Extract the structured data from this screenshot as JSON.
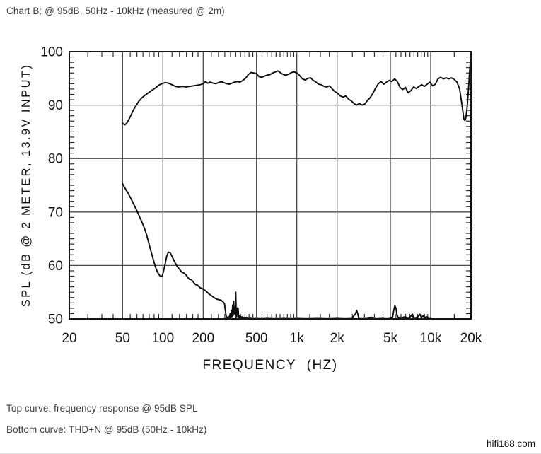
{
  "header": {
    "caption": "Chart B: @ 95dB, 50Hz - 10kHz (measured @ 2m)"
  },
  "footer": {
    "line1": "Top curve: frequency response @ 95dB SPL",
    "line2": "Bottom curve: THD+N @ 95dB (50Hz - 10kHz)",
    "watermark": "hifi168.com"
  },
  "colors": {
    "curve": "#0d0d0d",
    "grid": "#4a4a4a",
    "frame": "#151515",
    "tick": "#2a2a2a"
  },
  "chart_data": {
    "type": "line",
    "title": "Chart B: @ 95dB, 50Hz - 10kHz (measured @ 2m)",
    "xlabel": "FREQUENCY (HZ)",
    "ylabel": "SPL (dB @ 2 METER, 13.9V INPUT)",
    "x_scale": "log",
    "xlim": [
      20,
      20000
    ],
    "ylim": [
      50,
      100
    ],
    "grid": true,
    "x_gridline_freqs": [
      50,
      100,
      200,
      500,
      1000,
      2000,
      5000,
      10000
    ],
    "y_gridline_values": [
      60,
      70,
      80,
      90
    ],
    "x_ticks": [
      {
        "f": 20,
        "label": "20"
      },
      {
        "f": 50,
        "label": "50"
      },
      {
        "f": 100,
        "label": "100"
      },
      {
        "f": 200,
        "label": "200"
      },
      {
        "f": 500,
        "label": "500"
      },
      {
        "f": 1000,
        "label": "1k"
      },
      {
        "f": 2000,
        "label": "2k"
      },
      {
        "f": 5000,
        "label": "5k"
      },
      {
        "f": 10000,
        "label": "10k"
      },
      {
        "f": 20000,
        "label": "20k"
      }
    ],
    "y_ticks": [
      {
        "v": 100,
        "label": "100"
      },
      {
        "v": 90,
        "label": "90"
      },
      {
        "v": 80,
        "label": "80"
      },
      {
        "v": 70,
        "label": "70"
      },
      {
        "v": 60,
        "label": "60"
      },
      {
        "v": 50,
        "label": "50"
      }
    ],
    "x_minor_ticks": [
      27.5,
      35,
      42.5,
      57,
      64,
      71,
      79,
      86,
      93,
      117,
      133,
      150,
      167,
      183,
      230,
      260,
      290,
      320,
      350,
      380,
      410,
      440,
      470,
      550,
      600,
      650,
      700,
      750,
      800,
      850,
      900,
      950,
      1250,
      1500,
      1750,
      2600,
      3200,
      3800,
      4400,
      5500,
      6000,
      6500,
      7000,
      7500,
      8000,
      8500,
      9000,
      9500,
      15000
    ],
    "y_minor_step": 1,
    "series": [
      {
        "name": "frequency response @ 95dB SPL",
        "points": [
          [
            50,
            86.6
          ],
          [
            52,
            86.3
          ],
          [
            54,
            86.7
          ],
          [
            57,
            87.8
          ],
          [
            60,
            89.0
          ],
          [
            63,
            89.9
          ],
          [
            66,
            90.7
          ],
          [
            70,
            91.4
          ],
          [
            74,
            91.9
          ],
          [
            78,
            92.3
          ],
          [
            83,
            92.8
          ],
          [
            88,
            93.2
          ],
          [
            93,
            93.7
          ],
          [
            98,
            94.0
          ],
          [
            104,
            94.2
          ],
          [
            110,
            94.1
          ],
          [
            117,
            93.8
          ],
          [
            124,
            93.5
          ],
          [
            131,
            93.4
          ],
          [
            140,
            93.5
          ],
          [
            149,
            93.4
          ],
          [
            158,
            93.5
          ],
          [
            168,
            93.6
          ],
          [
            178,
            93.7
          ],
          [
            189,
            93.8
          ],
          [
            200,
            94.0
          ],
          [
            208,
            94.4
          ],
          [
            216,
            94.1
          ],
          [
            226,
            94.3
          ],
          [
            237,
            94.1
          ],
          [
            248,
            94.0
          ],
          [
            260,
            94.2
          ],
          [
            272,
            94.4
          ],
          [
            285,
            94.2
          ],
          [
            299,
            94.0
          ],
          [
            313,
            93.9
          ],
          [
            328,
            94.1
          ],
          [
            344,
            94.3
          ],
          [
            360,
            94.4
          ],
          [
            377,
            94.3
          ],
          [
            395,
            94.6
          ],
          [
            414,
            95.0
          ],
          [
            434,
            95.7
          ],
          [
            455,
            96.1
          ],
          [
            476,
            96.0
          ],
          [
            499,
            95.9
          ],
          [
            523,
            95.3
          ],
          [
            548,
            95.2
          ],
          [
            574,
            95.4
          ],
          [
            601,
            95.6
          ],
          [
            630,
            95.7
          ],
          [
            660,
            96.0
          ],
          [
            692,
            96.2
          ],
          [
            725,
            96.4
          ],
          [
            759,
            96.0
          ],
          [
            795,
            95.7
          ],
          [
            833,
            95.6
          ],
          [
            873,
            95.8
          ],
          [
            915,
            96.1
          ],
          [
            958,
            96.2
          ],
          [
            1004,
            96.0
          ],
          [
            1052,
            95.5
          ],
          [
            1102,
            94.9
          ],
          [
            1155,
            94.7
          ],
          [
            1210,
            95.0
          ],
          [
            1268,
            95.1
          ],
          [
            1328,
            94.6
          ],
          [
            1392,
            94.3
          ],
          [
            1458,
            93.9
          ],
          [
            1528,
            93.8
          ],
          [
            1601,
            93.5
          ],
          [
            1677,
            93.4
          ],
          [
            1757,
            93.6
          ],
          [
            1841,
            93.0
          ],
          [
            1929,
            92.5
          ],
          [
            2021,
            92.2
          ],
          [
            2117,
            91.7
          ],
          [
            2218,
            91.5
          ],
          [
            2324,
            91.7
          ],
          [
            2435,
            91.1
          ],
          [
            2551,
            90.8
          ],
          [
            2673,
            90.3
          ],
          [
            2800,
            90.0
          ],
          [
            2934,
            90.3
          ],
          [
            3074,
            90.0
          ],
          [
            3221,
            90.2
          ],
          [
            3375,
            90.9
          ],
          [
            3536,
            91.4
          ],
          [
            3704,
            92.2
          ],
          [
            3881,
            93.2
          ],
          [
            4066,
            94.0
          ],
          [
            4260,
            94.4
          ],
          [
            4463,
            93.9
          ],
          [
            4676,
            94.3
          ],
          [
            4899,
            94.6
          ],
          [
            5133,
            94.4
          ],
          [
            5377,
            94.9
          ],
          [
            5634,
            94.4
          ],
          [
            5902,
            93.3
          ],
          [
            6184,
            92.9
          ],
          [
            6479,
            93.3
          ],
          [
            6788,
            92.3
          ],
          [
            7112,
            92.7
          ],
          [
            7451,
            93.4
          ],
          [
            7806,
            93.1
          ],
          [
            8179,
            93.5
          ],
          [
            8569,
            93.8
          ],
          [
            8978,
            93.5
          ],
          [
            9406,
            93.9
          ],
          [
            9855,
            94.3
          ],
          [
            10325,
            93.6
          ],
          [
            10818,
            93.9
          ],
          [
            11334,
            94.9
          ],
          [
            11875,
            95.2
          ],
          [
            12441,
            94.9
          ],
          [
            13035,
            95.1
          ],
          [
            13657,
            94.9
          ],
          [
            14308,
            95.1
          ],
          [
            14991,
            94.8
          ],
          [
            15706,
            94.3
          ],
          [
            16455,
            93.0
          ],
          [
            17240,
            89.5
          ],
          [
            17700,
            87.4
          ],
          [
            18000,
            87.1
          ],
          [
            18300,
            87.6
          ],
          [
            18700,
            89.5
          ],
          [
            19100,
            92.5
          ],
          [
            19500,
            96.0
          ],
          [
            20000,
            99.8
          ]
        ]
      },
      {
        "name": "THD+N @ 95dB (50Hz - 10kHz)",
        "points": [
          [
            50,
            75.3
          ],
          [
            52,
            74.5
          ],
          [
            55,
            73.5
          ],
          [
            58,
            72.4
          ],
          [
            61,
            71.3
          ],
          [
            64,
            70.2
          ],
          [
            67,
            69.1
          ],
          [
            70,
            68.0
          ],
          [
            73,
            66.9
          ],
          [
            76,
            65.5
          ],
          [
            79,
            63.9
          ],
          [
            82,
            62.4
          ],
          [
            85,
            61.0
          ],
          [
            88,
            59.7
          ],
          [
            91,
            58.8
          ],
          [
            94,
            58.2
          ],
          [
            97,
            57.9
          ],
          [
            99,
            58.1
          ],
          [
            101,
            58.9
          ],
          [
            104,
            60.3
          ],
          [
            107,
            61.8
          ],
          [
            110,
            62.5
          ],
          [
            113,
            62.4
          ],
          [
            116,
            61.9
          ],
          [
            120,
            61.1
          ],
          [
            124,
            60.4
          ],
          [
            128,
            59.8
          ],
          [
            133,
            59.3
          ],
          [
            138,
            58.8
          ],
          [
            143,
            58.6
          ],
          [
            148,
            58.3
          ],
          [
            153,
            57.8
          ],
          [
            158,
            57.4
          ],
          [
            164,
            57.3
          ],
          [
            170,
            56.8
          ],
          [
            176,
            56.4
          ],
          [
            182,
            56.3
          ],
          [
            188,
            55.9
          ],
          [
            195,
            55.7
          ],
          [
            202,
            55.5
          ],
          [
            210,
            55.2
          ],
          [
            218,
            54.8
          ],
          [
            226,
            54.5
          ],
          [
            235,
            54.2
          ],
          [
            244,
            53.9
          ],
          [
            253,
            53.7
          ],
          [
            262,
            53.6
          ],
          [
            272,
            53.5
          ],
          [
            281,
            53.2
          ],
          [
            288,
            52.9
          ],
          [
            293,
            51.5
          ],
          [
            297,
            50.5
          ],
          [
            302,
            50.3
          ],
          [
            307,
            50.2
          ],
          [
            311,
            50.4
          ],
          [
            314,
            50.2
          ],
          [
            318,
            51.0
          ],
          [
            321,
            50.3
          ],
          [
            325,
            51.6
          ],
          [
            328,
            50.4
          ],
          [
            332,
            52.6
          ],
          [
            335,
            50.6
          ],
          [
            338,
            53.3
          ],
          [
            341,
            51.0
          ],
          [
            344,
            52.2
          ],
          [
            347,
            50.8
          ],
          [
            350,
            55.0
          ],
          [
            353,
            51.2
          ],
          [
            356,
            50.4
          ],
          [
            359,
            51.6
          ],
          [
            362,
            52.1
          ],
          [
            365,
            51.9
          ],
          [
            368,
            50.3
          ],
          [
            372,
            50.6
          ],
          [
            376,
            50.2
          ],
          [
            380,
            50.5
          ],
          [
            385,
            50.2
          ],
          [
            390,
            50.4
          ],
          [
            395,
            50.2
          ],
          [
            400,
            50.3
          ],
          [
            410,
            50.2
          ],
          [
            420,
            50.3
          ],
          [
            435,
            50.2
          ],
          [
            450,
            50.25
          ],
          [
            470,
            50.15
          ],
          [
            500,
            50.2
          ],
          [
            550,
            50.15
          ],
          [
            600,
            50.2
          ],
          [
            700,
            50.15
          ],
          [
            800,
            50.2
          ],
          [
            900,
            50.15
          ],
          [
            1000,
            50.2
          ],
          [
            1200,
            50.15
          ],
          [
            1400,
            50.2
          ],
          [
            1700,
            50.15
          ],
          [
            2000,
            50.2
          ],
          [
            2300,
            50.15
          ],
          [
            2600,
            50.2
          ],
          [
            2750,
            51.0
          ],
          [
            2800,
            51.6
          ],
          [
            2850,
            51.0
          ],
          [
            2900,
            50.2
          ],
          [
            3200,
            50.15
          ],
          [
            3600,
            50.3
          ],
          [
            3900,
            50.15
          ],
          [
            4300,
            50.2
          ],
          [
            4700,
            50.15
          ],
          [
            5000,
            50.2
          ],
          [
            5200,
            50.4
          ],
          [
            5300,
            51.6
          ],
          [
            5400,
            52.5
          ],
          [
            5500,
            52.0
          ],
          [
            5600,
            50.8
          ],
          [
            5700,
            50.3
          ],
          [
            6000,
            50.2
          ],
          [
            6400,
            50.4
          ],
          [
            6700,
            50.2
          ],
          [
            7000,
            50.3
          ],
          [
            7300,
            50.9
          ],
          [
            7400,
            50.3
          ],
          [
            7700,
            50.2
          ],
          [
            8000,
            50.4
          ],
          [
            8300,
            50.9
          ],
          [
            8500,
            50.3
          ],
          [
            8800,
            50.6
          ],
          [
            9000,
            50.2
          ],
          [
            9300,
            50.4
          ],
          [
            9600,
            50.2
          ],
          [
            10000,
            50.15
          ]
        ]
      }
    ]
  }
}
